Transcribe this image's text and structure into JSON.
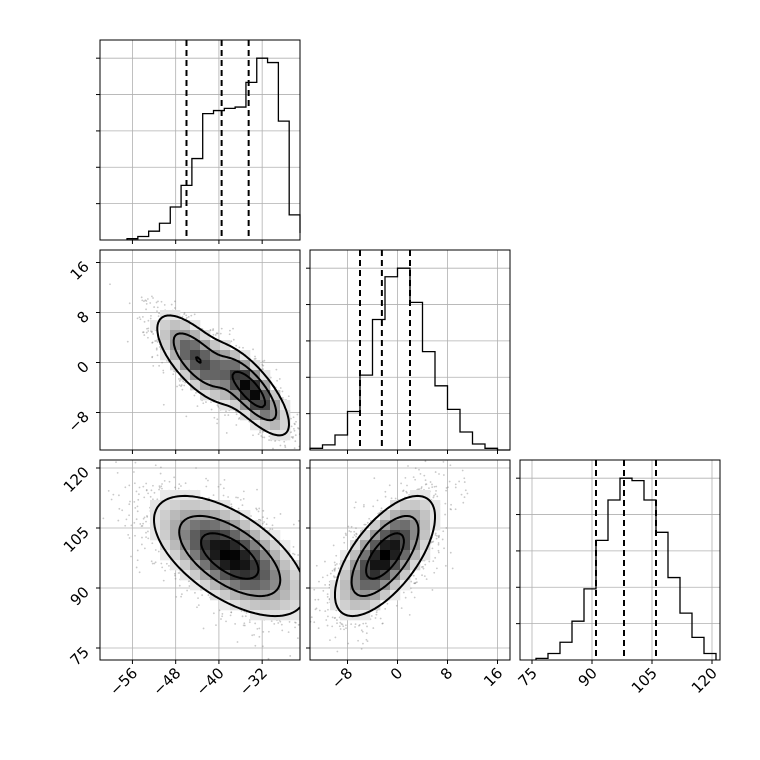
{
  "figure": {
    "background": "#ffffff",
    "line_color": "#000000",
    "grid_color": "#b0b0b0"
  },
  "chart_data": {
    "type": "corner",
    "grid": true,
    "parameters": [
      {
        "range": [
          -62,
          -25
        ],
        "ticks": [
          -56,
          -48,
          -40,
          -32
        ],
        "tick_labels": [
          "−56",
          "−48",
          "−40",
          "−32"
        ]
      },
      {
        "range": [
          -14,
          18
        ],
        "ticks": [
          -8,
          0,
          8,
          16
        ],
        "tick_labels": [
          "−8",
          "0",
          "8",
          "16"
        ]
      },
      {
        "range": [
          72,
          122
        ],
        "ticks": [
          75,
          90,
          105,
          120
        ],
        "tick_labels": [
          "75",
          "90",
          "105",
          "120"
        ]
      }
    ],
    "quantiles": [
      [
        -46,
        -39.5,
        -34.5
      ],
      [
        -6,
        -2.5,
        2
      ],
      [
        91,
        98,
        106
      ]
    ],
    "histograms": [
      {
        "bins": [
          -57,
          -55,
          -53,
          -51,
          -49,
          -47,
          -45,
          -43,
          -41,
          -39,
          -37,
          -35,
          -33,
          -31,
          -29,
          -27,
          -25
        ],
        "counts": [
          3,
          8,
          20,
          38,
          75,
          124,
          185,
          287,
          294,
          299,
          302,
          358,
          413,
          403,
          270,
          57,
          16
        ]
      },
      {
        "bins": [
          -14,
          -12,
          -10,
          -8,
          -6,
          -4,
          -2,
          0,
          2,
          4,
          6,
          8,
          10,
          12,
          14,
          16,
          18
        ],
        "counts": [
          4,
          12,
          35,
          90,
          175,
          305,
          405,
          425,
          345,
          230,
          150,
          95,
          42,
          14,
          4,
          0
        ]
      },
      {
        "bins": [
          76,
          79,
          82,
          85,
          88,
          91,
          94,
          97,
          100,
          103,
          106,
          109,
          112,
          115,
          118,
          121
        ],
        "counts": [
          2,
          8,
          22,
          48,
          88,
          148,
          198,
          225,
          222,
          198,
          158,
          102,
          58,
          28,
          8
        ]
      }
    ],
    "pairs": [
      {
        "x": 0,
        "y": 1,
        "components": [
          {
            "mean": [
              -44,
              0.5
            ],
            "sd": [
              4,
              3.8
            ],
            "rho": -0.7,
            "weight": 0.5
          },
          {
            "mean": [
              -34,
              -4.5
            ],
            "sd": [
              3.5,
              3.6
            ],
            "rho": -0.75,
            "weight": 0.5
          }
        ]
      },
      {
        "x": 0,
        "y": 2,
        "components": [
          {
            "mean": [
              -38,
              98
            ],
            "sd": [
              7,
              7.5
            ],
            "rho": -0.6,
            "weight": 1.0
          }
        ]
      },
      {
        "x": 1,
        "y": 2,
        "components": [
          {
            "mean": [
              -2,
              98
            ],
            "sd": [
              4,
              7.5
            ],
            "rho": 0.65,
            "weight": 1.0
          }
        ]
      }
    ]
  }
}
